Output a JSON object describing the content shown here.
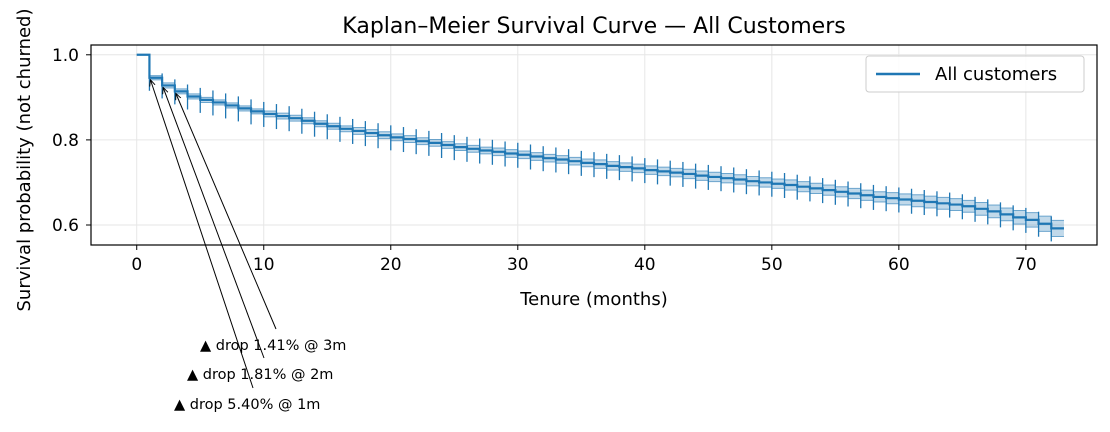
{
  "chart_data": {
    "type": "line",
    "title": "Kaplan–Meier Survival Curve — All Customers",
    "xlabel": "Tenure (months)",
    "ylabel": "Survival probability (not churned)",
    "xlim": [
      -3.6,
      75.6
    ],
    "ylim": [
      0.553,
      1.023
    ],
    "xticks": [
      0,
      10,
      20,
      30,
      40,
      50,
      60,
      70
    ],
    "yticks": [
      0.6,
      0.8,
      1.0
    ],
    "xtick_labels": [
      "0",
      "10",
      "20",
      "30",
      "40",
      "50",
      "60",
      "70"
    ],
    "ytick_labels": [
      "0.6",
      "0.8",
      "1.0"
    ],
    "grid": true,
    "legend": {
      "position": "top-right",
      "entries": [
        "All customers"
      ]
    },
    "series": [
      {
        "name": "All customers",
        "color": "#1f77b4",
        "step": "post",
        "x": [
          0,
          1,
          2,
          3,
          4,
          5,
          6,
          7,
          8,
          9,
          10,
          11,
          12,
          13,
          14,
          15,
          16,
          17,
          18,
          19,
          20,
          21,
          22,
          23,
          24,
          25,
          26,
          27,
          28,
          29,
          30,
          31,
          32,
          33,
          34,
          35,
          36,
          37,
          38,
          39,
          40,
          41,
          42,
          43,
          44,
          45,
          46,
          47,
          48,
          49,
          50,
          51,
          52,
          53,
          54,
          55,
          56,
          57,
          58,
          59,
          60,
          61,
          62,
          63,
          64,
          65,
          66,
          67,
          68,
          69,
          70,
          71,
          72,
          73
        ],
        "y": [
          1.0,
          0.946,
          0.928,
          0.914,
          0.902,
          0.894,
          0.888,
          0.881,
          0.874,
          0.867,
          0.861,
          0.856,
          0.851,
          0.845,
          0.838,
          0.832,
          0.826,
          0.821,
          0.816,
          0.811,
          0.806,
          0.802,
          0.797,
          0.793,
          0.788,
          0.783,
          0.779,
          0.775,
          0.772,
          0.768,
          0.765,
          0.761,
          0.757,
          0.754,
          0.75,
          0.746,
          0.743,
          0.739,
          0.736,
          0.733,
          0.729,
          0.726,
          0.723,
          0.72,
          0.716,
          0.713,
          0.71,
          0.707,
          0.703,
          0.7,
          0.697,
          0.694,
          0.69,
          0.686,
          0.682,
          0.678,
          0.674,
          0.67,
          0.666,
          0.663,
          0.66,
          0.657,
          0.654,
          0.651,
          0.648,
          0.644,
          0.638,
          0.632,
          0.625,
          0.618,
          0.612,
          0.603,
          0.592,
          0.592
        ],
        "ci_lower": [
          1.0,
          0.941,
          0.922,
          0.908,
          0.896,
          0.888,
          0.882,
          0.875,
          0.868,
          0.861,
          0.854,
          0.849,
          0.844,
          0.838,
          0.831,
          0.825,
          0.819,
          0.813,
          0.808,
          0.803,
          0.798,
          0.794,
          0.789,
          0.785,
          0.78,
          0.775,
          0.771,
          0.767,
          0.763,
          0.759,
          0.756,
          0.752,
          0.748,
          0.745,
          0.741,
          0.737,
          0.733,
          0.729,
          0.726,
          0.723,
          0.719,
          0.716,
          0.713,
          0.709,
          0.705,
          0.702,
          0.699,
          0.696,
          0.692,
          0.689,
          0.686,
          0.682,
          0.678,
          0.674,
          0.67,
          0.666,
          0.662,
          0.658,
          0.654,
          0.65,
          0.647,
          0.643,
          0.64,
          0.637,
          0.634,
          0.63,
          0.623,
          0.617,
          0.61,
          0.602,
          0.595,
          0.585,
          0.573,
          0.573
        ],
        "ci_upper": [
          1.0,
          0.951,
          0.934,
          0.92,
          0.908,
          0.9,
          0.894,
          0.887,
          0.88,
          0.873,
          0.868,
          0.863,
          0.858,
          0.852,
          0.845,
          0.839,
          0.833,
          0.829,
          0.824,
          0.819,
          0.814,
          0.81,
          0.805,
          0.801,
          0.796,
          0.791,
          0.787,
          0.783,
          0.781,
          0.777,
          0.774,
          0.77,
          0.766,
          0.763,
          0.759,
          0.755,
          0.753,
          0.749,
          0.746,
          0.743,
          0.739,
          0.736,
          0.733,
          0.731,
          0.727,
          0.724,
          0.721,
          0.718,
          0.714,
          0.711,
          0.708,
          0.706,
          0.702,
          0.698,
          0.694,
          0.69,
          0.686,
          0.682,
          0.678,
          0.676,
          0.673,
          0.671,
          0.668,
          0.665,
          0.662,
          0.658,
          0.653,
          0.647,
          0.64,
          0.634,
          0.629,
          0.621,
          0.611,
          0.611
        ],
        "censor_x": [
          1,
          2,
          3,
          4,
          5,
          6,
          7,
          8,
          9,
          10,
          11,
          12,
          13,
          14,
          15,
          16,
          17,
          18,
          19,
          20,
          21,
          22,
          23,
          24,
          25,
          26,
          27,
          28,
          29,
          30,
          31,
          32,
          33,
          34,
          35,
          36,
          37,
          38,
          39,
          40,
          41,
          42,
          43,
          44,
          45,
          46,
          47,
          48,
          49,
          50,
          51,
          52,
          53,
          54,
          55,
          56,
          57,
          58,
          59,
          60,
          61,
          62,
          63,
          64,
          65,
          66,
          67,
          68,
          69,
          70,
          71,
          72
        ]
      }
    ],
    "annotations": [
      {
        "text": "▲ drop 1.41% @ 3m",
        "x": 3,
        "y": 0.914
      },
      {
        "text": "▲ drop 1.81% @ 2m",
        "x": 2,
        "y": 0.928
      },
      {
        "text": "▲ drop 5.40% @ 1m",
        "x": 1,
        "y": 0.946
      }
    ]
  }
}
